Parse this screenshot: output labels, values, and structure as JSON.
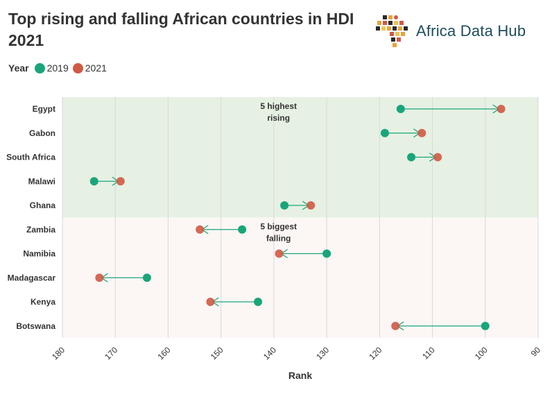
{
  "title": "Top rising and falling African countries in HDI 2021",
  "brand": {
    "name": "Africa Data Hub"
  },
  "legend": {
    "title": "Year",
    "items": [
      {
        "label": "2019",
        "color": "#19a57a"
      },
      {
        "label": "2021",
        "color": "#cf5a44"
      }
    ]
  },
  "colors": {
    "rising_band": "#e6f1e3",
    "falling_band": "#fcf6f5",
    "arrow": "#19a57a",
    "grid": "#d8d8d8"
  },
  "chart_data": {
    "type": "dumbbell",
    "title": "Top rising and falling African countries in HDI 2021",
    "xlabel": "Rank",
    "ylabel": "",
    "xlim": [
      180,
      90
    ],
    "x_reversed": true,
    "xticks": [
      180,
      170,
      160,
      150,
      140,
      130,
      120,
      110,
      100,
      90
    ],
    "categories": [
      "Egypt",
      "Gabon",
      "South Africa",
      "Malawi",
      "Ghana",
      "Zambia",
      "Namibia",
      "Madagascar",
      "Kenya",
      "Botswana"
    ],
    "series": [
      {
        "name": "2019",
        "values": [
          116,
          119,
          114,
          174,
          138,
          146,
          130,
          164,
          143,
          100
        ]
      },
      {
        "name": "2021",
        "values": [
          97,
          112,
          109,
          169,
          133,
          154,
          139,
          173,
          152,
          117
        ]
      }
    ],
    "groups": [
      {
        "label": "5 highest rising",
        "lines": [
          "5 highest",
          "rising"
        ],
        "categories": [
          "Egypt",
          "Gabon",
          "South Africa",
          "Malawi",
          "Ghana"
        ]
      },
      {
        "label": "5 biggest falling",
        "lines": [
          "5 biggest",
          "falling"
        ],
        "categories": [
          "Zambia",
          "Namibia",
          "Madagascar",
          "Kenya",
          "Botswana"
        ]
      }
    ]
  }
}
